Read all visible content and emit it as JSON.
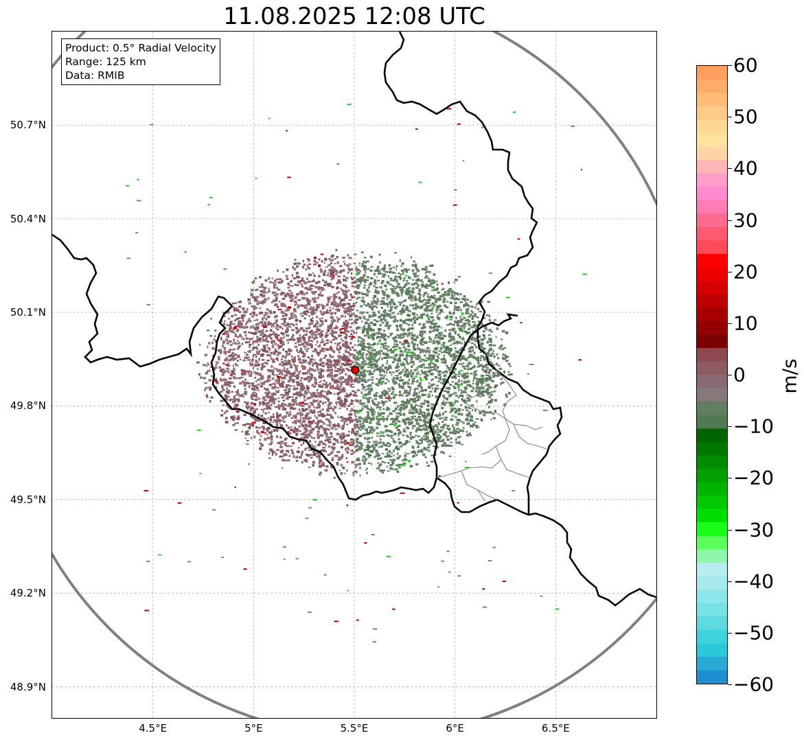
{
  "title": "11.08.2025 12:08 UTC",
  "info_box": {
    "product": "Product: 0.5° Radial Velocity",
    "range": "Range: 125 km",
    "data_source": "Data: RMIB"
  },
  "map": {
    "lon_range": [
      4.0,
      7.0
    ],
    "lat_range": [
      48.8,
      51.0
    ],
    "radar_site": {
      "lon": 5.505,
      "lat": 49.915
    },
    "lat_ticks": [
      "50.7°N",
      "50.4°N",
      "50.1°N",
      "49.8°N",
      "49.5°N",
      "49.2°N",
      "48.9°N"
    ],
    "lat_values": [
      50.7,
      50.4,
      50.1,
      49.8,
      49.5,
      49.2,
      48.9
    ],
    "lon_ticks": [
      "4.5°E",
      "5°E",
      "5.5°E",
      "6°E",
      "6.5°E"
    ],
    "lon_values": [
      4.5,
      5.0,
      5.5,
      6.0,
      6.5
    ],
    "range_ring_color": "#808080",
    "border_color": "#000000",
    "subdivision_color": "#808080",
    "grid": true
  },
  "colorbar": {
    "label": "m/s",
    "ticks": [
      "60",
      "50",
      "40",
      "30",
      "20",
      "10",
      "0",
      "−10",
      "−20",
      "−30",
      "−40",
      "−50",
      "−60"
    ],
    "tick_values": [
      60,
      50,
      40,
      30,
      20,
      10,
      0,
      -10,
      -20,
      -30,
      -40,
      -50,
      -60
    ],
    "range": [
      -60,
      60
    ],
    "colors_top_to_bottom": [
      "#ff9f5e",
      "#ffac6a",
      "#ffbb78",
      "#ffc987",
      "#ffd794",
      "#ffe29e",
      "#ffd5a8",
      "#ffb6b6",
      "#ff9ec8",
      "#ff8ad0",
      "#ff7bb3",
      "#ff6b8e",
      "#ff5a72",
      "#ff4a5a",
      "#ff0000",
      "#ec0000",
      "#d60000",
      "#bf0000",
      "#a80000",
      "#920000",
      "#7a0000",
      "#8c4a50",
      "#8e5a64",
      "#8a6a74",
      "#857a78",
      "#607e60",
      "#4f7a52",
      "#006400",
      "#007800",
      "#008c00",
      "#00a000",
      "#00b400",
      "#00c800",
      "#00e000",
      "#19ff19",
      "#5cff5c",
      "#90f5a8",
      "#b6eef0",
      "#a6eaee",
      "#8ee6ea",
      "#76e2e6",
      "#5ed9e0",
      "#3fd4dd",
      "#2ac8d8",
      "#2aa9d4",
      "#1f8fd0"
    ]
  }
}
